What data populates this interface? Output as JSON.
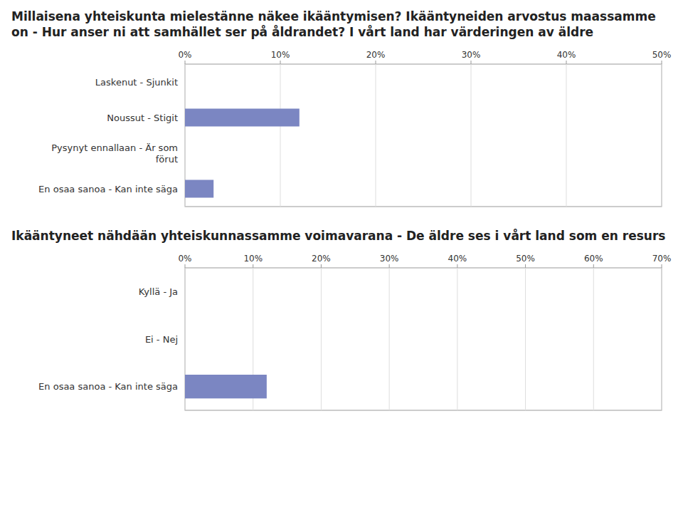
{
  "chart_data": [
    {
      "type": "bar",
      "orientation": "horizontal",
      "title": "Millaisena yhteiskunta mielestänne näkee ikääntymisen? Ikääntyneiden arvostus maassamme on - Hur anser ni att samhället ser på åldrandet? I vårt land har värderingen av äldre",
      "categories": [
        "Laskenut - Sjunkit",
        "Noussut - Stigit",
        "Pysynyt ennallaan - Är som\nförut",
        "En osaa sanoa - Kan inte säga"
      ],
      "values": [
        0,
        12,
        0,
        3
      ],
      "color": "#7b86c2",
      "xlim": [
        0,
        50
      ],
      "xticks": [
        {
          "value": 0,
          "label": "0%"
        },
        {
          "value": 10,
          "label": "10%"
        },
        {
          "value": 20,
          "label": "20%"
        },
        {
          "value": 30,
          "label": "30%"
        },
        {
          "value": 40,
          "label": "40%"
        },
        {
          "value": 50,
          "label": "50%"
        }
      ],
      "grid": true
    },
    {
      "type": "bar",
      "orientation": "horizontal",
      "title": "Ikääntyneet nähdään yhteiskunnassamme voimavarana - De äldre ses i vårt land som en resurs",
      "categories": [
        "Kyllä - Ja",
        "Ei - Nej",
        "En osaa sanoa - Kan inte säga"
      ],
      "values": [
        0,
        0,
        12
      ],
      "color": "#7b86c2",
      "xlim": [
        0,
        70
      ],
      "xticks": [
        {
          "value": 0,
          "label": "0%"
        },
        {
          "value": 10,
          "label": "10%"
        },
        {
          "value": 20,
          "label": "20%"
        },
        {
          "value": 30,
          "label": "30%"
        },
        {
          "value": 40,
          "label": "40%"
        },
        {
          "value": 50,
          "label": "50%"
        },
        {
          "value": 60,
          "label": "60%"
        },
        {
          "value": 70,
          "label": "70%"
        }
      ],
      "grid": true
    }
  ]
}
